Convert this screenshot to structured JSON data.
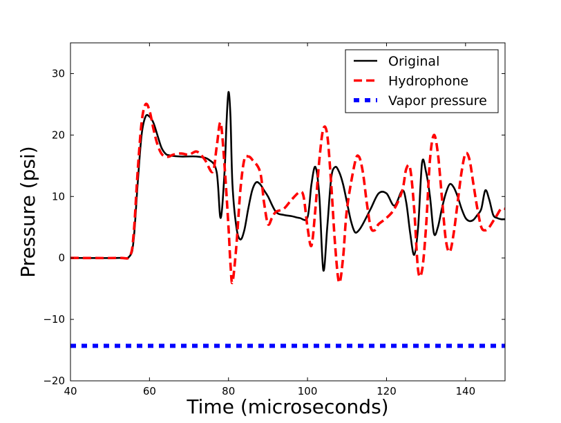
{
  "chart_data": {
    "type": "line",
    "title": "",
    "xlabel": "Time (microseconds)",
    "ylabel": "Pressure (psi)",
    "xlim": [
      40,
      150
    ],
    "ylim": [
      -20,
      35
    ],
    "xticks": [
      40,
      60,
      80,
      100,
      120,
      140
    ],
    "yticks": [
      -20,
      -10,
      0,
      10,
      20,
      30
    ],
    "xtick_labels": [
      "40",
      "60",
      "80",
      "100",
      "120",
      "140"
    ],
    "ytick_labels": [
      "−20",
      "−10",
      "0",
      "10",
      "20",
      "30"
    ],
    "grid": false,
    "legend_position": "top-right",
    "series": [
      {
        "name": "Original",
        "color": "#000000",
        "style": "solid",
        "x": [
          40,
          52,
          55,
          56,
          57,
          58,
          59,
          60,
          61,
          62,
          63,
          64,
          65,
          68,
          72,
          75,
          77,
          78,
          79,
          79.5,
          80,
          80.5,
          81,
          82,
          83,
          84,
          85,
          86,
          87,
          88,
          89,
          90,
          92,
          94,
          96,
          98,
          100,
          101,
          102,
          103,
          104,
          105,
          106,
          107,
          108,
          109,
          110,
          111,
          112,
          113,
          114,
          116,
          118,
          120,
          122,
          124,
          125,
          126,
          127,
          128,
          129,
          130,
          131,
          132,
          133,
          134,
          135,
          136,
          137,
          138,
          139,
          140,
          141,
          142,
          143,
          144,
          145,
          146,
          147,
          148,
          149,
          150
        ],
        "y": [
          0,
          0,
          0.3,
          3,
          12,
          20,
          23,
          23,
          22,
          20,
          18,
          17,
          16.7,
          16.5,
          16.5,
          16,
          14,
          6.5,
          14,
          22,
          27,
          23,
          12,
          5,
          3,
          4.5,
          8,
          11,
          12.3,
          12,
          11,
          10,
          7.5,
          7,
          6.8,
          6.5,
          6.6,
          12,
          14.8,
          10,
          -2,
          5,
          13,
          14.8,
          14,
          12,
          9,
          6,
          4.2,
          4.5,
          5.5,
          8,
          10.5,
          10.5,
          8.5,
          11,
          9,
          4,
          0.5,
          5,
          15.5,
          14,
          10,
          4,
          5,
          8,
          10.5,
          12,
          11.5,
          10,
          8,
          6.5,
          6,
          6.2,
          7,
          8,
          11,
          9.5,
          7,
          6.5,
          6.3,
          6.3
        ]
      },
      {
        "name": "Hydrophone",
        "color": "#ff0000",
        "style": "dashed",
        "x": [
          40,
          52,
          55,
          56,
          57,
          58,
          59,
          60,
          61,
          62,
          63,
          64,
          65,
          66,
          68,
          70,
          72,
          74,
          76,
          77,
          78,
          79,
          80,
          80.5,
          81,
          82,
          83,
          84,
          85,
          86,
          88,
          89,
          90,
          91,
          92,
          94,
          96,
          98,
          99,
          100,
          101,
          102,
          103,
          104,
          105,
          106,
          107,
          108,
          109,
          110,
          112,
          113,
          114,
          115,
          116,
          117,
          118,
          120,
          122,
          124,
          125,
          126,
          127,
          128,
          129,
          130,
          131,
          132,
          133,
          134,
          135,
          136,
          137,
          138,
          139,
          140,
          141,
          142,
          143,
          144,
          145,
          146,
          147,
          148,
          149,
          150
        ],
        "y": [
          0,
          0,
          0.3,
          4,
          14,
          22,
          25,
          24,
          21,
          18.5,
          17,
          16.5,
          16.5,
          16.8,
          17,
          16.8,
          17.3,
          16,
          14,
          18,
          22,
          15,
          5,
          -1,
          -4,
          2,
          11,
          16,
          16.5,
          16,
          14,
          9,
          5.5,
          6.5,
          7.5,
          8,
          9.5,
          10.7,
          10,
          5,
          2,
          8,
          16,
          21,
          20,
          12,
          2,
          -4,
          0,
          8,
          15.5,
          16.5,
          14,
          9,
          5,
          4.5,
          5.5,
          6.5,
          8,
          11,
          14.5,
          14.5,
          8,
          -2,
          -2,
          5,
          16,
          20,
          17,
          10,
          3,
          1,
          4,
          9,
          14,
          17,
          16,
          12,
          8,
          5,
          4.5,
          5,
          6,
          7,
          8,
          8
        ]
      },
      {
        "name": "Vapor pressure",
        "color": "#0000ff",
        "style": "dotted",
        "x": [
          40,
          150
        ],
        "y": [
          -14.3,
          -14.3
        ]
      }
    ]
  }
}
